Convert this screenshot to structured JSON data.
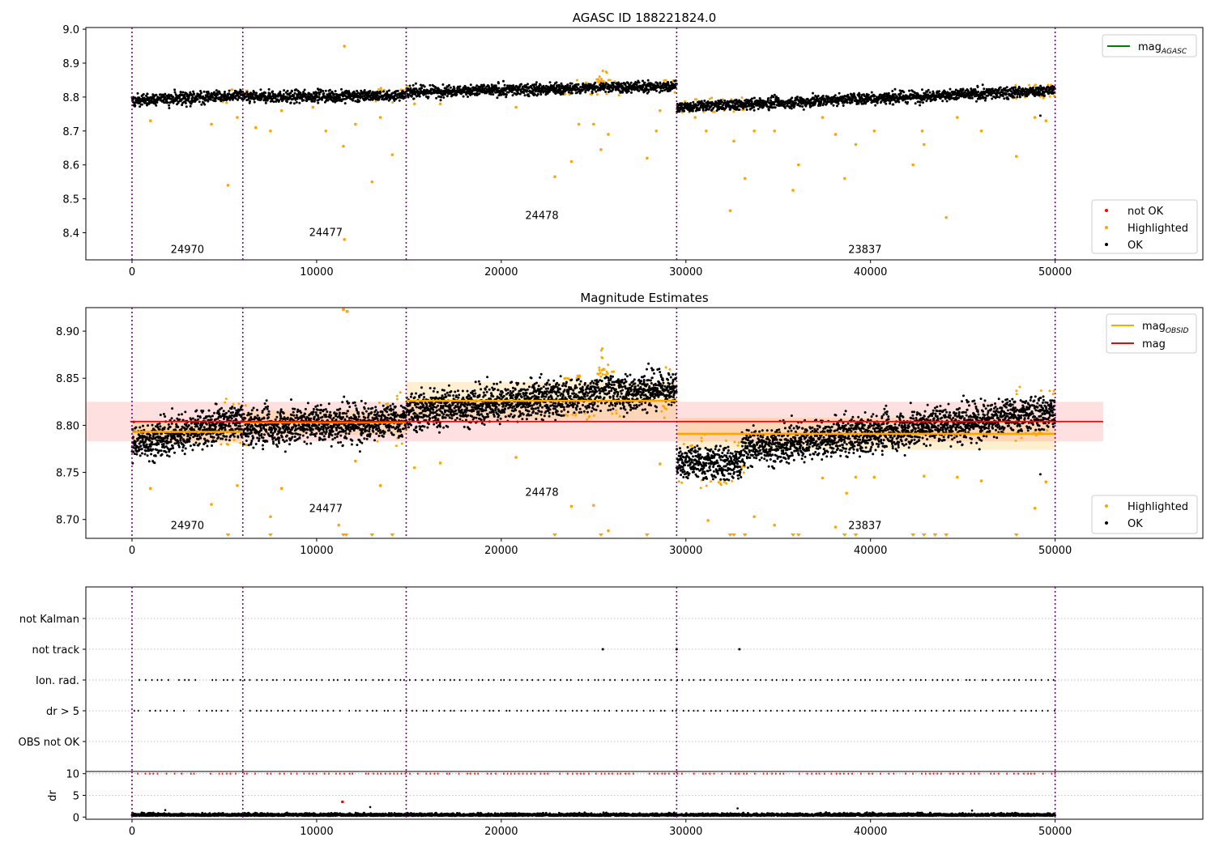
{
  "chart_data": [
    {
      "type": "scatter",
      "title": "AGASC ID 188221824.0",
      "xlim": [
        -2500,
        58000
      ],
      "ylim": [
        8.32,
        9.005
      ],
      "xticks": [
        0,
        10000,
        20000,
        30000,
        40000,
        50000
      ],
      "yticks": [
        8.4,
        8.5,
        8.6,
        8.7,
        8.8,
        8.9,
        9.0
      ],
      "ytick_labels": [
        "8.4",
        "8.5",
        "8.6",
        "8.7",
        "8.8",
        "8.9",
        "9.0"
      ],
      "vlines": [
        0,
        6000,
        14850,
        29500,
        50000
      ],
      "obsid_labels": [
        {
          "x": 3000,
          "y": 8.34,
          "text": "24970"
        },
        {
          "x": 10500,
          "y": 8.39,
          "text": "24477"
        },
        {
          "x": 22200,
          "y": 8.44,
          "text": "24478"
        },
        {
          "x": 39700,
          "y": 8.34,
          "text": "23837"
        }
      ],
      "trend": [
        {
          "x0": 0,
          "x1": 6000,
          "y0": 8.79,
          "y1": 8.805
        },
        {
          "x0": 6000,
          "x1": 14850,
          "y0": 8.8,
          "y1": 8.805
        },
        {
          "x0": 14850,
          "x1": 29500,
          "y0": 8.815,
          "y1": 8.832
        },
        {
          "x0": 29500,
          "x1": 50000,
          "y0": 8.77,
          "y1": 8.82
        }
      ],
      "spread": 0.012,
      "highlighted": [
        [
          5200,
          8.54
        ],
        [
          4300,
          8.72
        ],
        [
          11500,
          8.95
        ],
        [
          11450,
          8.655
        ],
        [
          11500,
          8.38
        ],
        [
          13000,
          8.55
        ],
        [
          14100,
          8.63
        ],
        [
          7500,
          8.7
        ],
        [
          6700,
          8.71
        ],
        [
          10500,
          8.7
        ],
        [
          12100,
          8.72
        ],
        [
          13450,
          8.74
        ],
        [
          8100,
          8.76
        ],
        [
          9800,
          8.77
        ],
        [
          1000,
          8.73
        ],
        [
          5700,
          8.74
        ],
        [
          22900,
          8.565
        ],
        [
          23800,
          8.61
        ],
        [
          24200,
          8.72
        ],
        [
          25000,
          8.72
        ],
        [
          25400,
          8.645
        ],
        [
          25800,
          8.69
        ],
        [
          27900,
          8.62
        ],
        [
          28400,
          8.7
        ],
        [
          28600,
          8.76
        ],
        [
          20800,
          8.77
        ],
        [
          15300,
          8.78
        ],
        [
          16700,
          8.78
        ],
        [
          32400,
          8.465
        ],
        [
          32600,
          8.67
        ],
        [
          33200,
          8.56
        ],
        [
          31100,
          8.7
        ],
        [
          33700,
          8.7
        ],
        [
          34800,
          8.7
        ],
        [
          35800,
          8.525
        ],
        [
          36100,
          8.6
        ],
        [
          38100,
          8.69
        ],
        [
          38600,
          8.56
        ],
        [
          39200,
          8.66
        ],
        [
          40200,
          8.7
        ],
        [
          42300,
          8.6
        ],
        [
          42900,
          8.66
        ],
        [
          42800,
          8.7
        ],
        [
          44100,
          8.445
        ],
        [
          44700,
          8.74
        ],
        [
          46000,
          8.7
        ],
        [
          47900,
          8.625
        ],
        [
          48900,
          8.74
        ],
        [
          49500,
          8.73
        ],
        [
          37400,
          8.74
        ],
        [
          30500,
          8.74
        ]
      ],
      "bump": {
        "x0": 23400,
        "x1": 26500,
        "peak": 0.08,
        "center": 25500,
        "width": 400
      },
      "highlight_ranges": [
        [
          4800,
          6300
        ],
        [
          13200,
          14900
        ],
        [
          23400,
          26500
        ],
        [
          28600,
          29400
        ],
        [
          29500,
          33200
        ],
        [
          47500,
          50000
        ]
      ],
      "ok_outliers": [
        [
          49200,
          8.745
        ]
      ],
      "legend_lines": [
        {
          "label": "mag",
          "sub": "AGASC",
          "color": "#008000"
        }
      ],
      "legend_points": [
        {
          "label": "not OK",
          "color": "#ff0000"
        },
        {
          "label": "Highlighted",
          "color": "#ffa500"
        },
        {
          "label": "OK",
          "color": "#000000"
        }
      ]
    },
    {
      "type": "scatter",
      "title": "Magnitude Estimates",
      "xlim": [
        -2500,
        58000
      ],
      "ylim": [
        8.68,
        8.925
      ],
      "xticks": [
        0,
        10000,
        20000,
        30000,
        40000,
        50000
      ],
      "yticks": [
        8.7,
        8.75,
        8.8,
        8.85,
        8.9
      ],
      "ytick_labels": [
        "8.70",
        "8.75",
        "8.80",
        "8.85",
        "8.90"
      ],
      "vlines": [
        0,
        6000,
        14850,
        29500,
        50000
      ],
      "obsid_labels": [
        {
          "x": 3000,
          "y": 8.69,
          "text": "24970"
        },
        {
          "x": 10500,
          "y": 8.708,
          "text": "24477"
        },
        {
          "x": 22200,
          "y": 8.725,
          "text": "24478"
        },
        {
          "x": 39700,
          "y": 8.69,
          "text": "23837"
        }
      ],
      "trend": [
        {
          "x0": 0,
          "x1": 6000,
          "y0": 8.78,
          "y1": 8.805
        },
        {
          "x0": 6000,
          "x1": 14850,
          "y0": 8.798,
          "y1": 8.805
        },
        {
          "x0": 14850,
          "x1": 29500,
          "y0": 8.815,
          "y1": 8.84
        },
        {
          "x0": 29500,
          "x1": 33000,
          "y0": 8.76,
          "y1": 8.76
        },
        {
          "x0": 33000,
          "x1": 50000,
          "y0": 8.775,
          "y1": 8.815
        }
      ],
      "spread": 0.014,
      "mag_global": {
        "value": 8.804,
        "x0": -2500,
        "x1": 52600,
        "band": [
          8.783,
          8.825
        ],
        "color": "#ff0000"
      },
      "mag_obsid": [
        {
          "x0": 0,
          "x1": 6000,
          "value": 8.793
        },
        {
          "x0": 6000,
          "x1": 14850,
          "value": 8.803
        },
        {
          "x0": 14850,
          "x1": 29500,
          "value": 8.826
        },
        {
          "x0": 29500,
          "x1": 50000,
          "value": 8.791
        }
      ],
      "obsid_bands": [
        {
          "x0": 0,
          "x1": 6000,
          "lo": 8.781,
          "hi": 8.805
        },
        {
          "x0": 6000,
          "x1": 14850,
          "lo": 8.79,
          "hi": 8.816
        },
        {
          "x0": 14850,
          "x1": 29500,
          "lo": 8.806,
          "hi": 8.846
        },
        {
          "x0": 29500,
          "x1": 50000,
          "lo": 8.774,
          "hi": 8.808
        }
      ],
      "highlighted": [
        [
          4300,
          8.716
        ],
        [
          1000,
          8.733
        ],
        [
          5700,
          8.736
        ],
        [
          7500,
          8.703
        ],
        [
          8100,
          8.733
        ],
        [
          11200,
          8.694
        ],
        [
          13450,
          8.736
        ],
        [
          12100,
          8.762
        ],
        [
          20800,
          8.766
        ],
        [
          15300,
          8.755
        ],
        [
          16700,
          8.76
        ],
        [
          23800,
          8.714
        ],
        [
          25000,
          8.715
        ],
        [
          25800,
          8.688
        ],
        [
          28600,
          8.759
        ],
        [
          31200,
          8.699
        ],
        [
          33700,
          8.703
        ],
        [
          34800,
          8.694
        ],
        [
          37400,
          8.744
        ],
        [
          38100,
          8.692
        ],
        [
          38700,
          8.728
        ],
        [
          39200,
          8.745
        ],
        [
          40200,
          8.745
        ],
        [
          42900,
          8.746
        ],
        [
          44700,
          8.745
        ],
        [
          46000,
          8.741
        ],
        [
          48900,
          8.712
        ],
        [
          49500,
          8.74
        ]
      ],
      "bump": {
        "x0": 23400,
        "x1": 26500,
        "peak": 0.06,
        "center": 25500,
        "width": 350
      },
      "highlight_ranges": [
        [
          4800,
          6300
        ],
        [
          13200,
          14900
        ],
        [
          23400,
          26500
        ],
        [
          28600,
          29400
        ],
        [
          29500,
          33200
        ],
        [
          47500,
          50000
        ]
      ],
      "triangles": [
        5200,
        7500,
        11450,
        11600,
        13000,
        14100,
        22900,
        25400,
        27900,
        32400,
        32600,
        33200,
        35800,
        36100,
        38600,
        39200,
        42300,
        42900,
        43500,
        44100,
        47900
      ],
      "ok_outliers": [
        [
          49200,
          8.748
        ]
      ],
      "legend_lines": [
        {
          "label": "mag",
          "sub": "OBSID",
          "color": "#ffa500"
        },
        {
          "label": "mag",
          "sub": "",
          "color": "#ff0000"
        }
      ],
      "legend_points": [
        {
          "label": "Highlighted",
          "color": "#ffa500"
        },
        {
          "label": "OK",
          "color": "#000000"
        }
      ]
    },
    {
      "type": "scatter",
      "title": "",
      "xlim": [
        -2500,
        58000
      ],
      "categories": [
        "not Kalman",
        "not track",
        "Ion. rad.",
        "dr > 5",
        "OBS not OK"
      ],
      "not_track_points": [
        25500,
        29500,
        32900
      ],
      "flag_rows": [
        "Ion. rad.",
        "dr > 5"
      ]
    },
    {
      "type": "scatter",
      "title": "",
      "ylabel": "dr",
      "xlim": [
        -2500,
        58000
      ],
      "ylim": [
        -0.5,
        10.5
      ],
      "xticks": [
        0,
        10000,
        20000,
        30000,
        40000,
        50000
      ],
      "yticks": [
        0,
        5,
        10
      ],
      "ytick_labels": [
        "0",
        "5",
        "10"
      ],
      "vlines": [
        0,
        6000,
        14850,
        29500,
        50000
      ],
      "red_clipped_value": 10,
      "red_outlier": [
        11400,
        3.5
      ],
      "ok_outliers": [
        [
          12900,
          2.3
        ],
        [
          1800,
          1.6
        ],
        [
          32800,
          2.0
        ],
        [
          45500,
          1.5
        ]
      ]
    }
  ]
}
